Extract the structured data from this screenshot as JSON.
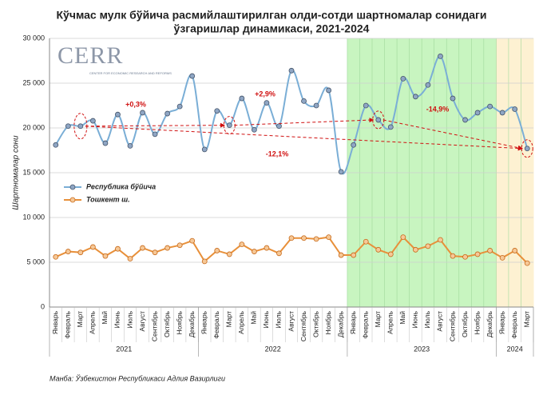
{
  "chart_data": {
    "type": "line",
    "title": [
      "Кўчмас мулк бўйича расмийлаштирилган олди-сотди шартномалар сонидаги",
      "ўзгаришлар динамикаси, 2021-2024"
    ],
    "y_label": "Шартномалар сони",
    "source": "Манба: Ўзбекистон Республикаси Адлия Вазирлиги",
    "logo": {
      "name": "CERR",
      "tagline": "CENTER FOR ECONOMIC RESEARCH AND REFORMS"
    },
    "categories": [
      {
        "year": "2021",
        "month": "Январь"
      },
      {
        "year": "2021",
        "month": "Февраль"
      },
      {
        "year": "2021",
        "month": "Март"
      },
      {
        "year": "2021",
        "month": "Апрель"
      },
      {
        "year": "2021",
        "month": "Май"
      },
      {
        "year": "2021",
        "month": "Июнь"
      },
      {
        "year": "2021",
        "month": "Июль"
      },
      {
        "year": "2021",
        "month": "Август"
      },
      {
        "year": "2021",
        "month": "Сентябрь"
      },
      {
        "year": "2021",
        "month": "Октябрь"
      },
      {
        "year": "2021",
        "month": "Ноябрь"
      },
      {
        "year": "2021",
        "month": "Декабрь"
      },
      {
        "year": "2022",
        "month": "Январь"
      },
      {
        "year": "2022",
        "month": "Февраль"
      },
      {
        "year": "2022",
        "month": "Март"
      },
      {
        "year": "2022",
        "month": "Апрель"
      },
      {
        "year": "2022",
        "month": "Май"
      },
      {
        "year": "2022",
        "month": "Июнь"
      },
      {
        "year": "2022",
        "month": "Июль"
      },
      {
        "year": "2022",
        "month": "Август"
      },
      {
        "year": "2022",
        "month": "Сентябрь"
      },
      {
        "year": "2022",
        "month": "Октябрь"
      },
      {
        "year": "2022",
        "month": "Ноябрь"
      },
      {
        "year": "2022",
        "month": "Декабрь"
      },
      {
        "year": "2023",
        "month": "Январь"
      },
      {
        "year": "2023",
        "month": "Февраль"
      },
      {
        "year": "2023",
        "month": "Март"
      },
      {
        "year": "2023",
        "month": "Апрель"
      },
      {
        "year": "2023",
        "month": "Май"
      },
      {
        "year": "2023",
        "month": "Июнь"
      },
      {
        "year": "2023",
        "month": "Июль"
      },
      {
        "year": "2023",
        "month": "Август"
      },
      {
        "year": "2023",
        "month": "Сентябрь"
      },
      {
        "year": "2023",
        "month": "Октябрь"
      },
      {
        "year": "2023",
        "month": "Ноябрь"
      },
      {
        "year": "2023",
        "month": "Декабрь"
      },
      {
        "year": "2024",
        "month": "Январь"
      },
      {
        "year": "2024",
        "month": "Февраль"
      },
      {
        "year": "2024",
        "month": "Март"
      }
    ],
    "year_colors": {
      "2023": "#c8f5c0",
      "2024": "#fdf1d2"
    },
    "series": [
      {
        "name": "Республика бўйича",
        "color": "#7aaed6",
        "marker": "#8fa6c4",
        "edge": "#44546a",
        "smooth": true,
        "values": [
          18100,
          20200,
          20200,
          20800,
          18300,
          21500,
          18000,
          21700,
          19300,
          21600,
          22400,
          25800,
          17600,
          21900,
          20300,
          23300,
          19800,
          22800,
          20200,
          26400,
          23000,
          22500,
          24200,
          15100,
          18100,
          22500,
          20900,
          20100,
          25500,
          23500,
          24800,
          28000,
          23300,
          20900,
          21700,
          22400,
          21700,
          22100,
          17700
        ]
      },
      {
        "name": "Тошкент ш.",
        "color": "#e8903a",
        "marker": "#f6c897",
        "edge": "#c86a1a",
        "smooth": false,
        "values": [
          5600,
          6200,
          6100,
          6700,
          5700,
          6500,
          5400,
          6600,
          6100,
          6600,
          6900,
          7400,
          5100,
          6300,
          5900,
          7000,
          6200,
          6600,
          6000,
          7700,
          7700,
          7600,
          7800,
          5800,
          5800,
          7300,
          6400,
          5900,
          7800,
          6400,
          6800,
          7500,
          5700,
          5600,
          5900,
          6300,
          5500,
          6300,
          4900
        ]
      }
    ],
    "annotations": [
      "+0,3%",
      "+2,9%",
      "-14,9%",
      "-12,1%"
    ],
    "ylim": [
      0,
      30000
    ],
    "yticks": [
      0,
      {
        "value": 5000,
        "label": "5 000"
      },
      {
        "value": 10000,
        "label": "10 000"
      },
      {
        "value": 15000,
        "label": "15 000"
      },
      {
        "value": 20000,
        "label": "20 000"
      },
      {
        "value": 25000,
        "label": "25 000"
      },
      {
        "value": 30000,
        "label": "30 000"
      }
    ],
    "grid": true
  }
}
